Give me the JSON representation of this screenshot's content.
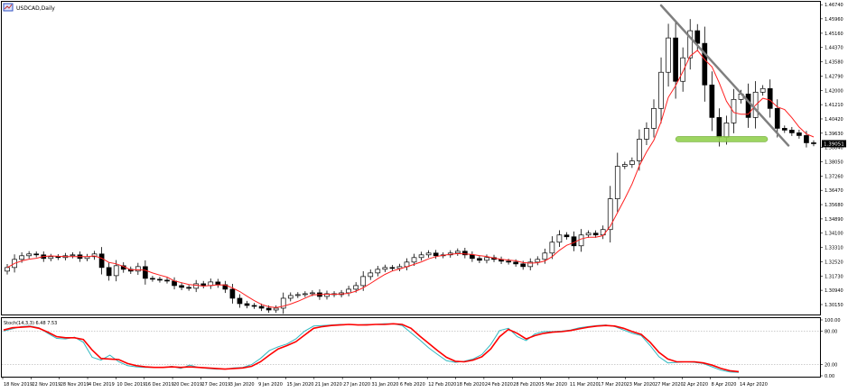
{
  "header": {
    "symbol_title": "USDCAD,Daily",
    "indicator_title": "Stoch(14,3,3) 6.48 7.53"
  },
  "colors": {
    "background": "#ffffff",
    "frame": "#000000",
    "bull_body": "#ffffff",
    "bear_body": "#000000",
    "ma_line": "#ff2020",
    "stoch_main": "#30b8c0",
    "stoch_signal": "#ff0000",
    "trendline": "#808080",
    "support_zone": "#92d050",
    "current_price_box": "#000000",
    "current_price_text": "#ffffff"
  },
  "icons": {
    "chart_icon": "chart-window-icon"
  },
  "chart_data": [
    {
      "type": "candlestick",
      "title": "USDCAD,Daily",
      "ylim": [
        1.2965,
        1.4685
      ],
      "price_ticks": [
        "1.46740",
        "1.45960",
        "1.45160",
        "1.44370",
        "1.43580",
        "1.42790",
        "1.42000",
        "1.41210",
        "1.40420",
        "1.39630",
        "1.38840",
        "1.38050",
        "1.37260",
        "1.36470",
        "1.35680",
        "1.34890",
        "1.34100",
        "1.33310",
        "1.32520",
        "1.31730",
        "1.30940",
        "1.30150"
      ],
      "current_price": "1.39051",
      "x_labels": [
        "18 Nov 2019",
        "22 Nov 2019",
        "28 Nov 2019",
        "4 Dec 2019",
        "10 Dec 2019",
        "16 Dec 2019",
        "20 Dec 2019",
        "27 Dec 2019",
        "3 Jan 2020",
        "9 Jan 2020",
        "15 Jan 2020",
        "21 Jan 2020",
        "27 Jan 2020",
        "31 Jan 2020",
        "6 Feb 2020",
        "12 Feb 2020",
        "18 Feb 2020",
        "24 Feb 2020",
        "28 Feb 2020",
        "5 Mar 2020",
        "11 Mar 2020",
        "17 Mar 2020",
        "23 Mar 2020",
        "27 Mar 2020",
        "2 Apr 2020",
        "8 Apr 2020",
        "14 Apr 2020"
      ],
      "closes": [
        1.322,
        1.3265,
        1.3285,
        1.3295,
        1.329,
        1.327,
        1.328,
        1.3275,
        1.3285,
        1.329,
        1.327,
        1.328,
        1.3295,
        1.322,
        1.3175,
        1.323,
        1.321,
        1.32,
        1.3225,
        1.316,
        1.3155,
        1.315,
        1.3145,
        1.312,
        1.311,
        1.3105,
        1.313,
        1.312,
        1.314,
        1.3125,
        1.31,
        1.305,
        1.302,
        1.301,
        1.3005,
        1.2995,
        1.2985,
        1.2995,
        1.305,
        1.3065,
        1.307,
        1.3075,
        1.308,
        1.306,
        1.3075,
        1.307,
        1.308,
        1.31,
        1.312,
        1.317,
        1.319,
        1.321,
        1.322,
        1.3215,
        1.3225,
        1.325,
        1.3275,
        1.329,
        1.33,
        1.3285,
        1.329,
        1.33,
        1.331,
        1.329,
        1.327,
        1.326,
        1.3275,
        1.3265,
        1.3255,
        1.325,
        1.324,
        1.3225,
        1.325,
        1.3265,
        1.33,
        1.336,
        1.34,
        1.339,
        1.334,
        1.34,
        1.341,
        1.34,
        1.343,
        1.36,
        1.378,
        1.379,
        1.381,
        1.393,
        1.399,
        1.41,
        1.43,
        1.449,
        1.425,
        1.438,
        1.453,
        1.446,
        1.423,
        1.405,
        1.394,
        1.402,
        1.415,
        1.418,
        1.405,
        1.419,
        1.421,
        1.41,
        1.399,
        1.398,
        1.3965,
        1.395,
        1.391,
        1.3905
      ],
      "ma_period": 5,
      "annotations": [
        "descending trendline",
        "support zone"
      ]
    },
    {
      "type": "line",
      "title": "Stoch(14,3,3) 6.48 7.53",
      "ylim": [
        0,
        100
      ],
      "levels": [
        80,
        20
      ],
      "y_ticks": [
        "100.00",
        "80.00",
        "20.00",
        "0.00"
      ],
      "series": [
        {
          "name": "main",
          "values": [
            80,
            84,
            88,
            89,
            86,
            76,
            67,
            66,
            69,
            60,
            33,
            28,
            37,
            25,
            18,
            16,
            15,
            15,
            15,
            17,
            13,
            19,
            15,
            13,
            12,
            12,
            14,
            15,
            20,
            31,
            45,
            52,
            57,
            66,
            80,
            89,
            90,
            91,
            92,
            92,
            91,
            92,
            92,
            93,
            93,
            90,
            77,
            64,
            50,
            38,
            27,
            24,
            26,
            30,
            38,
            56,
            81,
            85,
            70,
            63,
            75,
            79,
            79,
            80,
            82,
            86,
            88,
            90,
            91,
            88,
            82,
            76,
            72,
            54,
            34,
            23,
            24,
            25,
            24,
            22,
            16,
            10,
            7,
            6
          ]
        },
        {
          "name": "signal",
          "values": [
            82,
            86,
            87,
            88,
            85,
            78,
            70,
            68,
            68,
            65,
            46,
            31,
            30,
            29,
            22,
            18,
            16,
            15,
            15,
            16,
            15,
            16,
            15,
            14,
            13,
            12,
            13,
            14,
            17,
            25,
            37,
            48,
            54,
            61,
            73,
            85,
            88,
            90,
            91,
            92,
            91,
            91,
            92,
            92,
            93,
            92,
            85,
            71,
            58,
            45,
            33,
            26,
            25,
            28,
            34,
            48,
            70,
            83,
            76,
            66,
            72,
            76,
            78,
            79,
            81,
            84,
            87,
            89,
            90,
            89,
            85,
            79,
            74,
            60,
            42,
            30,
            25,
            25,
            25,
            23,
            19,
            13,
            9,
            7.5
          ]
        }
      ]
    }
  ]
}
